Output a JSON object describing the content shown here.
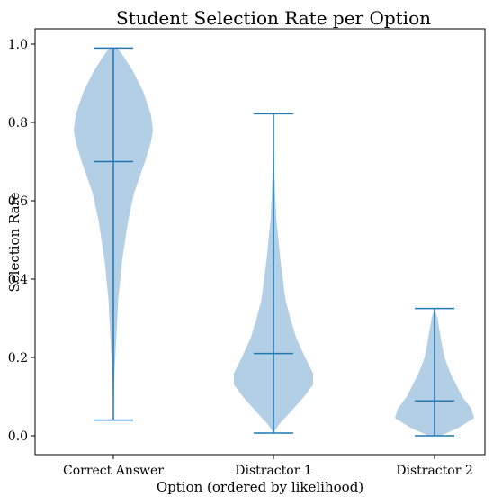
{
  "chart_data": {
    "type": "violin",
    "title": "Student Selection Rate per Option",
    "xlabel": "Option (ordered by likelihood)",
    "ylabel": "Selection Rate",
    "categories": [
      "Correct Answer",
      "Distractor 1",
      "Distractor 2"
    ],
    "ylim": [
      -0.05,
      1.03
    ],
    "yticks": [
      "0.0",
      "0.2",
      "0.4",
      "0.6",
      "0.8",
      "1.0"
    ],
    "grid": false,
    "colors": {
      "fill": "#b3cfe6",
      "line": "#1f77b4"
    },
    "series": [
      {
        "min": 0.04,
        "max": 0.99,
        "median": 0.7,
        "density": [
          [
            0.04,
            0.0
          ],
          [
            0.15,
            0.01
          ],
          [
            0.25,
            0.03
          ],
          [
            0.35,
            0.05
          ],
          [
            0.45,
            0.09
          ],
          [
            0.55,
            0.15
          ],
          [
            0.62,
            0.21
          ],
          [
            0.7,
            0.32
          ],
          [
            0.75,
            0.38
          ],
          [
            0.78,
            0.4
          ],
          [
            0.82,
            0.38
          ],
          [
            0.88,
            0.3
          ],
          [
            0.93,
            0.2
          ],
          [
            0.97,
            0.1
          ],
          [
            0.99,
            0.04
          ]
        ]
      },
      {
        "min": 0.007,
        "max": 0.822,
        "median": 0.21,
        "density": [
          [
            0.007,
            0.0
          ],
          [
            0.03,
            0.06
          ],
          [
            0.06,
            0.17
          ],
          [
            0.1,
            0.31
          ],
          [
            0.13,
            0.4
          ],
          [
            0.16,
            0.4
          ],
          [
            0.2,
            0.32
          ],
          [
            0.25,
            0.23
          ],
          [
            0.3,
            0.17
          ],
          [
            0.35,
            0.12
          ],
          [
            0.45,
            0.07
          ],
          [
            0.55,
            0.03
          ],
          [
            0.65,
            0.012
          ],
          [
            0.75,
            0.004
          ],
          [
            0.822,
            0.0
          ]
        ]
      },
      {
        "min": 0.0,
        "max": 0.325,
        "median": 0.089,
        "density": [
          [
            0.0,
            0.06
          ],
          [
            0.02,
            0.24
          ],
          [
            0.045,
            0.4
          ],
          [
            0.07,
            0.37
          ],
          [
            0.1,
            0.28
          ],
          [
            0.13,
            0.22
          ],
          [
            0.16,
            0.16
          ],
          [
            0.2,
            0.1
          ],
          [
            0.24,
            0.07
          ],
          [
            0.27,
            0.05
          ],
          [
            0.3,
            0.03
          ],
          [
            0.325,
            0.0
          ]
        ]
      }
    ]
  }
}
